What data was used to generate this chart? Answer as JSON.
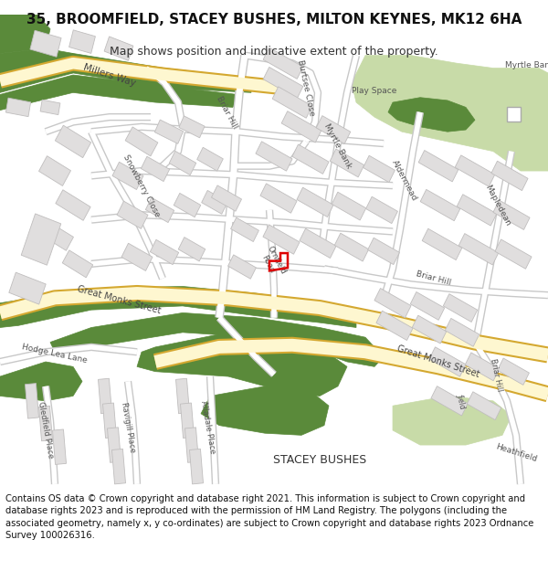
{
  "title": "35, BROOMFIELD, STACEY BUSHES, MILTON KEYNES, MK12 6HA",
  "subtitle": "Map shows position and indicative extent of the property.",
  "footer": "Contains OS data © Crown copyright and database right 2021. This information is subject to Crown copyright and database rights 2023 and is reproduced with the permission of HM Land Registry. The polygons (including the associated geometry, namely x, y co-ordinates) are subject to Crown copyright and database rights 2023 Ordnance Survey 100026316.",
  "bg_color": "#ffffff",
  "map_bg": "#f8f8f6",
  "road_white": "#ffffff",
  "road_outline": "#c8c8c8",
  "major_road_fill": "#fef7d0",
  "major_road_outline": "#d4a830",
  "building_fill": "#e0dede",
  "building_outline": "#c0bebe",
  "green_light": "#c8dba8",
  "green_dark": "#5a8a3a",
  "highlight_color": "#dd0000",
  "text_color": "#555555",
  "title_fontsize": 11,
  "subtitle_fontsize": 9,
  "footer_fontsize": 7.2
}
